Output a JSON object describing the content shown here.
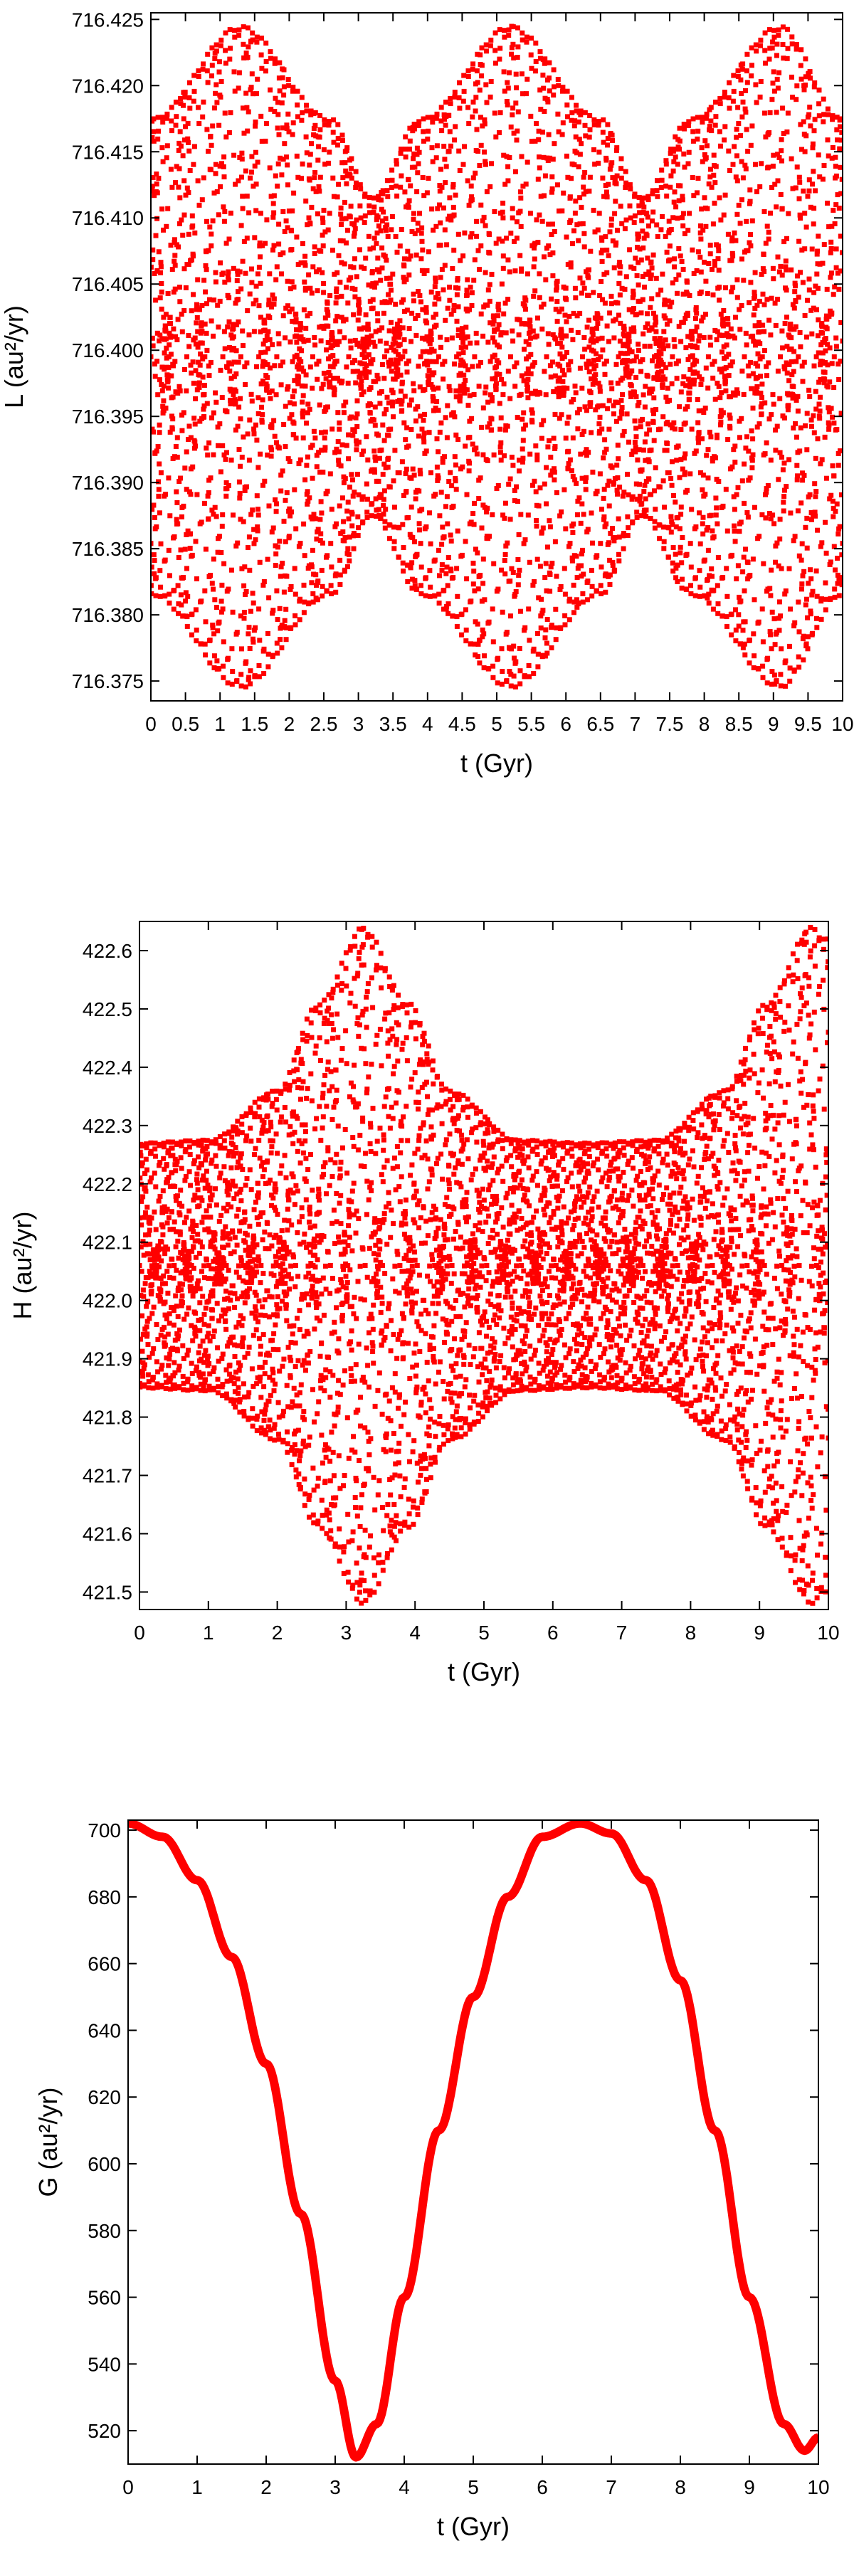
{
  "chart_data": [
    {
      "type": "scatter",
      "xlabel": "t (Gyr)",
      "ylabel": "L (au²/yr)",
      "xlim": [
        0,
        10
      ],
      "ylim": [
        716.3735,
        716.4255
      ],
      "x_ticks": [
        0,
        0.5,
        1,
        1.5,
        2,
        2.5,
        3,
        3.5,
        4,
        4.5,
        5,
        5.5,
        6,
        6.5,
        7,
        7.5,
        8,
        8.5,
        9,
        9.5,
        10
      ],
      "x_tick_labels": [
        "0",
        "0.5",
        "1",
        "1.5",
        "2",
        "2.5",
        "3",
        "3.5",
        "4",
        "4.5",
        "5",
        "5.5",
        "6",
        "6.5",
        "7",
        "7.5",
        "8",
        "8.5",
        "9",
        "9.5",
        "10"
      ],
      "y_ticks": [
        716.375,
        716.38,
        716.385,
        716.39,
        716.395,
        716.4,
        716.405,
        716.41,
        716.415,
        716.42,
        716.425
      ],
      "y_tick_labels": [
        "716.375",
        "716.380",
        "716.385",
        "716.390",
        "716.395",
        "716.400",
        "716.405",
        "716.410",
        "716.415",
        "716.420",
        "716.425"
      ],
      "grid": false,
      "legend": "none",
      "color": "#ff0000",
      "series": [
        {
          "mean": 716.3995,
          "amplitude_envelope": {
            "x": [
              0,
              1.3,
              2.6,
              3.2,
              3.9,
              5.2,
              6.5,
              7.1,
              7.8,
              9.1,
              10
            ],
            "values": [
              0.018,
              0.025,
              0.018,
              0.012,
              0.018,
              0.025,
              0.018,
              0.012,
              0.018,
              0.025,
              0.018
            ]
          },
          "fast_period_gyr": 0.065,
          "point_spacing_gyr": 0.004
        }
      ]
    },
    {
      "type": "scatter",
      "xlabel": "t (Gyr)",
      "ylabel": "H (au²/yr)",
      "xlim": [
        0,
        10
      ],
      "ylim": [
        421.47,
        422.65
      ],
      "x_ticks": [
        0,
        1,
        2,
        3,
        4,
        5,
        6,
        7,
        8,
        9,
        10
      ],
      "x_tick_labels": [
        "0",
        "1",
        "2",
        "3",
        "4",
        "5",
        "6",
        "7",
        "8",
        "9",
        "10"
      ],
      "y_ticks": [
        421.5,
        421.6,
        421.7,
        421.8,
        421.9,
        422.0,
        422.1,
        422.2,
        422.3,
        422.4,
        422.5,
        422.6
      ],
      "y_tick_labels": [
        "421.5",
        "421.6",
        "421.7",
        "421.8",
        "421.9",
        "422.0",
        "422.1",
        "422.2",
        "422.3",
        "422.4",
        "422.5",
        "422.6"
      ],
      "grid": false,
      "legend": "none",
      "color": "#ff0000",
      "series": [
        {
          "mean": 422.06,
          "amplitude_envelope": {
            "x": [
              0,
              1,
              2,
              2.6,
              3.25,
              3.9,
              4.5,
              5.5,
              6.5,
              7.5,
              8.5,
              9.1,
              9.75,
              10
            ],
            "values": [
              0.21,
              0.215,
              0.3,
              0.45,
              0.58,
              0.45,
              0.3,
              0.215,
              0.21,
              0.215,
              0.3,
              0.45,
              0.58,
              0.56
            ]
          },
          "fast_period_gyr": 0.063,
          "point_spacing_gyr": 0.004
        }
      ]
    },
    {
      "type": "line",
      "xlabel": "t (Gyr)",
      "ylabel": "G (au²/yr)",
      "xlim": [
        0,
        10
      ],
      "ylim": [
        510,
        703
      ],
      "x_ticks": [
        0,
        1,
        2,
        3,
        4,
        5,
        6,
        7,
        8,
        9,
        10
      ],
      "x_tick_labels": [
        "0",
        "1",
        "2",
        "3",
        "4",
        "5",
        "6",
        "7",
        "8",
        "9",
        "10"
      ],
      "y_ticks": [
        520,
        540,
        560,
        580,
        600,
        620,
        640,
        660,
        680,
        700
      ],
      "y_tick_labels": [
        "520",
        "540",
        "560",
        "580",
        "600",
        "620",
        "640",
        "660",
        "680",
        "700"
      ],
      "grid": false,
      "legend": "none",
      "color": "#ff0000",
      "series": [
        {
          "x": [
            0,
            0.5,
            1,
            1.5,
            2,
            2.5,
            3,
            3.3,
            3.6,
            4,
            4.5,
            5,
            5.5,
            6,
            6.55,
            7,
            7.5,
            8,
            8.5,
            9,
            9.5,
            9.8,
            10
          ],
          "values": [
            702,
            698,
            685,
            662,
            630,
            585,
            535,
            512,
            522,
            560,
            610,
            650,
            680,
            698,
            702,
            699,
            685,
            655,
            610,
            560,
            522,
            514,
            518
          ]
        }
      ]
    }
  ]
}
